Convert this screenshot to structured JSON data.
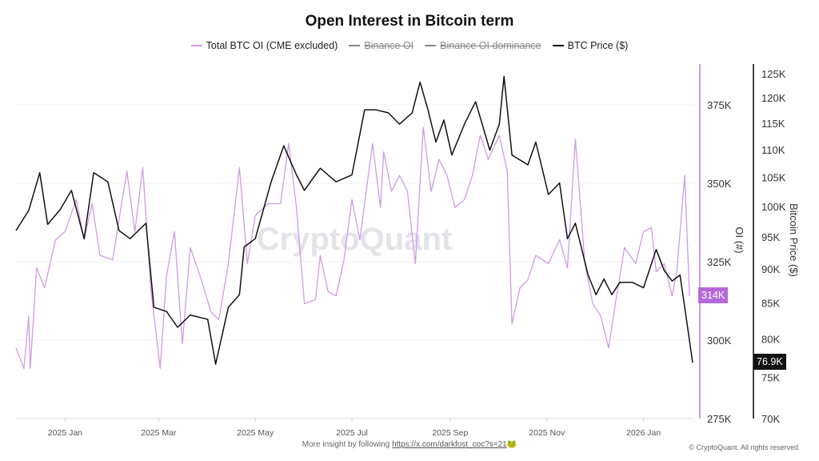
{
  "chart_data": {
    "type": "line",
    "title": "Open Interest in Bitcoin term",
    "legend": [
      {
        "name": "Total BTC OI (CME excluded)",
        "color": "#cf9be6",
        "visible": true
      },
      {
        "name": "Binance OI",
        "color": "#888888",
        "visible": false
      },
      {
        "name": "Binance OI dominance",
        "color": "#888888",
        "visible": false
      },
      {
        "name": "BTC Price ($)",
        "color": "#111111",
        "visible": true
      }
    ],
    "legend_placement": "top",
    "x_ticks": [
      "2025 Jan",
      "2025 Mar",
      "2025 May",
      "2025 Jul",
      "2025 Sep",
      "2025 Nov",
      "2026 Jan"
    ],
    "x_tick_dates": [
      "2025-01-01",
      "2025-03-01",
      "2025-05-01",
      "2025-07-01",
      "2025-09-01",
      "2025-11-01",
      "2026-01-01"
    ],
    "xlim": [
      "2024-12-01",
      "2026-02-02"
    ],
    "y_left": {
      "label": "OI (#)",
      "ticks": [
        "275K",
        "300K",
        "325K",
        "350K",
        "375K"
      ],
      "tick_values": [
        275,
        300,
        325,
        350,
        375
      ],
      "lim": [
        275,
        388
      ],
      "scale": "linear",
      "unit": "K BTC"
    },
    "y_right": {
      "label": "Bitcoin Price ($)",
      "ticks": [
        "70K",
        "75K",
        "80K",
        "85K",
        "90K",
        "95K",
        "100K",
        "105K",
        "110K",
        "115K",
        "120K",
        "125K"
      ],
      "tick_values": [
        70,
        75,
        80,
        85,
        90,
        95,
        100,
        105,
        110,
        115,
        120,
        125
      ],
      "lim": [
        70,
        127
      ],
      "scale": "log",
      "unit": "K USD"
    },
    "grid": true,
    "last_values": {
      "oi": "314K",
      "price": "76.9K"
    },
    "series": [
      {
        "name": "Total BTC OI (CME excluded)",
        "axis": "left",
        "color": "#cf9be6",
        "points": [
          [
            "2024-12-01",
            297.5
          ],
          [
            "2024-12-06",
            291
          ],
          [
            "2024-12-09",
            307.7
          ],
          [
            "2024-12-10",
            291
          ],
          [
            "2024-12-14",
            323
          ],
          [
            "2024-12-19",
            316.7
          ],
          [
            "2024-12-26",
            332
          ],
          [
            "2025-01-01",
            334.6
          ],
          [
            "2025-01-08",
            344.8
          ],
          [
            "2025-01-13",
            332
          ],
          [
            "2025-01-18",
            343.5
          ],
          [
            "2025-01-23",
            327
          ],
          [
            "2025-01-31",
            325.6
          ],
          [
            "2025-02-04",
            338.4
          ],
          [
            "2025-02-09",
            353.8
          ],
          [
            "2025-02-14",
            334.6
          ],
          [
            "2025-02-19",
            355
          ],
          [
            "2025-02-24",
            316.7
          ],
          [
            "2025-03-02",
            291
          ],
          [
            "2025-03-06",
            320.5
          ],
          [
            "2025-03-11",
            334.6
          ],
          [
            "2025-03-16",
            298.8
          ],
          [
            "2025-03-21",
            329.5
          ],
          [
            "2025-03-28",
            319.2
          ],
          [
            "2025-04-03",
            309
          ],
          [
            "2025-04-08",
            306.5
          ],
          [
            "2025-04-14",
            324.4
          ],
          [
            "2025-04-21",
            355
          ],
          [
            "2025-04-26",
            324.4
          ],
          [
            "2025-05-01",
            339.7
          ],
          [
            "2025-05-09",
            343.5
          ],
          [
            "2025-05-17",
            343.5
          ],
          [
            "2025-05-22",
            362.7
          ],
          [
            "2025-05-27",
            342.3
          ],
          [
            "2025-06-01",
            311.6
          ],
          [
            "2025-06-08",
            312.9
          ],
          [
            "2025-06-11",
            327
          ],
          [
            "2025-06-16",
            315.4
          ],
          [
            "2025-06-21",
            314.1
          ],
          [
            "2025-06-26",
            325.6
          ],
          [
            "2025-07-01",
            344.8
          ],
          [
            "2025-07-06",
            332
          ],
          [
            "2025-07-14",
            362.7
          ],
          [
            "2025-07-19",
            342.3
          ],
          [
            "2025-07-21",
            360
          ],
          [
            "2025-07-26",
            347.4
          ],
          [
            "2025-07-31",
            352.5
          ],
          [
            "2025-08-05",
            347.4
          ],
          [
            "2025-08-10",
            324.4
          ],
          [
            "2025-08-15",
            367.8
          ],
          [
            "2025-08-20",
            347.4
          ],
          [
            "2025-08-25",
            357.6
          ],
          [
            "2025-08-30",
            352.5
          ],
          [
            "2025-09-04",
            342.3
          ],
          [
            "2025-09-10",
            344.8
          ],
          [
            "2025-09-15",
            352.5
          ],
          [
            "2025-09-20",
            365.3
          ],
          [
            "2025-09-25",
            357.6
          ],
          [
            "2025-10-02",
            365.3
          ],
          [
            "2025-10-07",
            353.8
          ],
          [
            "2025-10-10",
            305.2
          ],
          [
            "2025-10-15",
            316.7
          ],
          [
            "2025-10-20",
            319.2
          ],
          [
            "2025-10-25",
            327
          ],
          [
            "2025-11-02",
            324.4
          ],
          [
            "2025-11-09",
            332
          ],
          [
            "2025-11-14",
            323
          ],
          [
            "2025-11-16",
            339.7
          ],
          [
            "2025-11-19",
            364
          ],
          [
            "2025-11-25",
            324.4
          ],
          [
            "2025-11-30",
            311.6
          ],
          [
            "2025-12-05",
            307.7
          ],
          [
            "2025-12-10",
            297.5
          ],
          [
            "2025-12-15",
            314.1
          ],
          [
            "2025-12-20",
            329.5
          ],
          [
            "2025-12-27",
            324.4
          ],
          [
            "2026-01-01",
            334.6
          ],
          [
            "2026-01-06",
            335.9
          ],
          [
            "2026-01-09",
            321.8
          ],
          [
            "2026-01-14",
            324.4
          ],
          [
            "2026-01-19",
            314.1
          ],
          [
            "2026-01-22",
            321.8
          ],
          [
            "2026-01-27",
            352.5
          ],
          [
            "2026-01-30",
            314
          ]
        ]
      },
      {
        "name": "BTC Price ($)",
        "axis": "right",
        "color": "#111111",
        "points": [
          [
            "2024-12-01",
            96.0
          ],
          [
            "2024-12-09",
            99.3
          ],
          [
            "2024-12-16",
            105.8
          ],
          [
            "2024-12-21",
            97.0
          ],
          [
            "2024-12-29",
            99.5
          ],
          [
            "2025-01-05",
            102.7
          ],
          [
            "2025-01-13",
            94.7
          ],
          [
            "2025-01-19",
            105.8
          ],
          [
            "2025-01-28",
            104.2
          ],
          [
            "2025-02-04",
            96.0
          ],
          [
            "2025-02-11",
            94.7
          ],
          [
            "2025-02-21",
            97.2
          ],
          [
            "2025-02-26",
            84.4
          ],
          [
            "2025-03-06",
            83.8
          ],
          [
            "2025-03-13",
            81.6
          ],
          [
            "2025-03-21",
            83.3
          ],
          [
            "2025-04-01",
            82.7
          ],
          [
            "2025-04-06",
            76.7
          ],
          [
            "2025-04-14",
            84.4
          ],
          [
            "2025-04-21",
            86.2
          ],
          [
            "2025-04-24",
            93.4
          ],
          [
            "2025-05-01",
            94.7
          ],
          [
            "2025-05-11",
            104.2
          ],
          [
            "2025-05-19",
            110.7
          ],
          [
            "2025-05-27",
            105.4
          ],
          [
            "2025-06-01",
            102.7
          ],
          [
            "2025-06-11",
            106.6
          ],
          [
            "2025-06-21",
            104.2
          ],
          [
            "2025-07-01",
            105.4
          ],
          [
            "2025-07-09",
            117.6
          ],
          [
            "2025-07-16",
            117.6
          ],
          [
            "2025-07-24",
            117.0
          ],
          [
            "2025-07-31",
            114.8
          ],
          [
            "2025-08-08",
            117.0
          ],
          [
            "2025-08-13",
            123.2
          ],
          [
            "2025-08-18",
            117.6
          ],
          [
            "2025-08-23",
            111.4
          ],
          [
            "2025-08-28",
            115.6
          ],
          [
            "2025-09-02",
            109.0
          ],
          [
            "2025-09-10",
            114.8
          ],
          [
            "2025-09-17",
            119.2
          ],
          [
            "2025-09-26",
            109.9
          ],
          [
            "2025-10-02",
            114.8
          ],
          [
            "2025-10-05",
            124.4
          ],
          [
            "2025-10-10",
            109.0
          ],
          [
            "2025-10-20",
            107.2
          ],
          [
            "2025-10-25",
            111.4
          ],
          [
            "2025-11-02",
            102.0
          ],
          [
            "2025-11-09",
            104.0
          ],
          [
            "2025-11-14",
            94.7
          ],
          [
            "2025-11-19",
            97.2
          ],
          [
            "2025-11-27",
            89.1
          ],
          [
            "2025-12-02",
            86.2
          ],
          [
            "2025-12-07",
            88.5
          ],
          [
            "2025-12-12",
            86.2
          ],
          [
            "2025-12-17",
            88.0
          ],
          [
            "2025-12-25",
            88.0
          ],
          [
            "2026-01-01",
            87.2
          ],
          [
            "2026-01-09",
            93.0
          ],
          [
            "2026-01-14",
            89.8
          ],
          [
            "2026-01-19",
            88.2
          ],
          [
            "2026-01-24",
            89.1
          ],
          [
            "2026-01-27",
            84.4
          ],
          [
            "2026-02-01",
            76.9
          ]
        ]
      }
    ]
  },
  "watermark": "CryptoQuant",
  "footer": {
    "text": "More insight by following ",
    "link": "https://x.com/darkfost_coc?s=21",
    "emoji": "🐸"
  },
  "copyright": "© CryptoQuant. All rights reserved"
}
